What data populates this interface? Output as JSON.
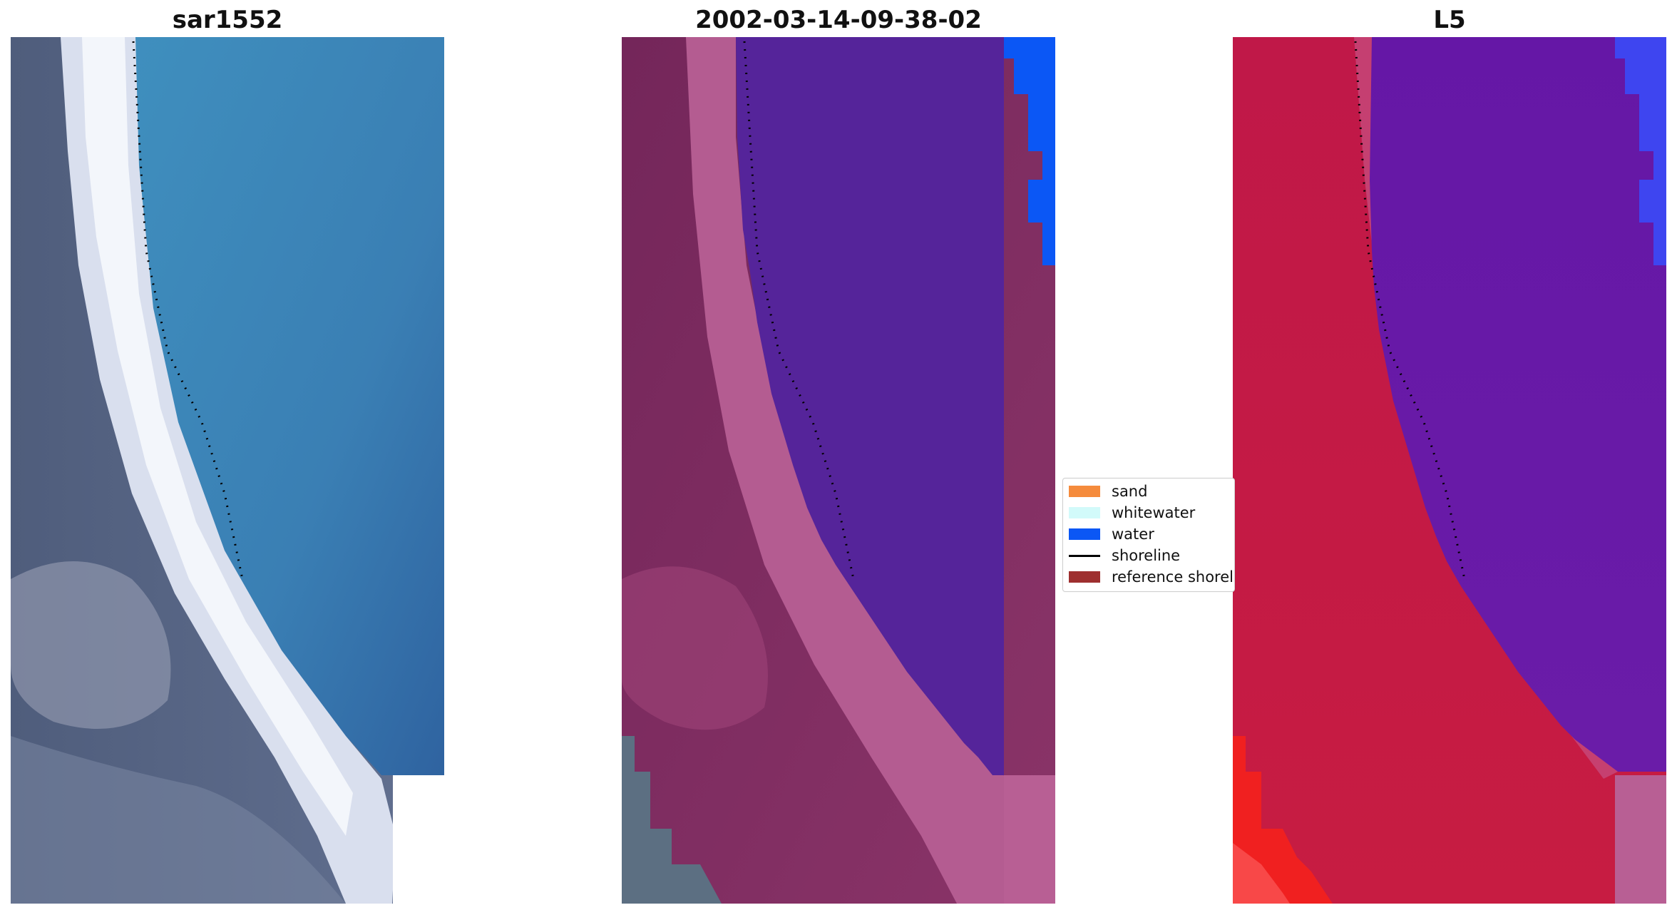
{
  "panels": [
    {
      "title": "sar1552"
    },
    {
      "title": "2002-03-14-09-38-02"
    },
    {
      "title": "L5"
    }
  ],
  "legend": {
    "items": [
      {
        "label": "sand",
        "color": "#f58b3c",
        "kind": "patch"
      },
      {
        "label": "whitewater",
        "color": "#d2fafa",
        "kind": "patch"
      },
      {
        "label": "water",
        "color": "#0b57f5",
        "kind": "patch"
      },
      {
        "label": "shoreline",
        "color": "#000000",
        "kind": "line"
      },
      {
        "label": "reference shoreline",
        "color": "#9e2f2f",
        "kind": "patch"
      }
    ]
  },
  "colors": {
    "rgb_land": "#5b6a86",
    "rgb_surf": "#e9eef7",
    "rgb_sea": "#3b7fb4",
    "class_land": "#7b2a5f",
    "class_surf": "#c06896",
    "class_sea": "#55249a",
    "index_land": "#c41a4b",
    "index_sea": "#6a1ca8"
  }
}
